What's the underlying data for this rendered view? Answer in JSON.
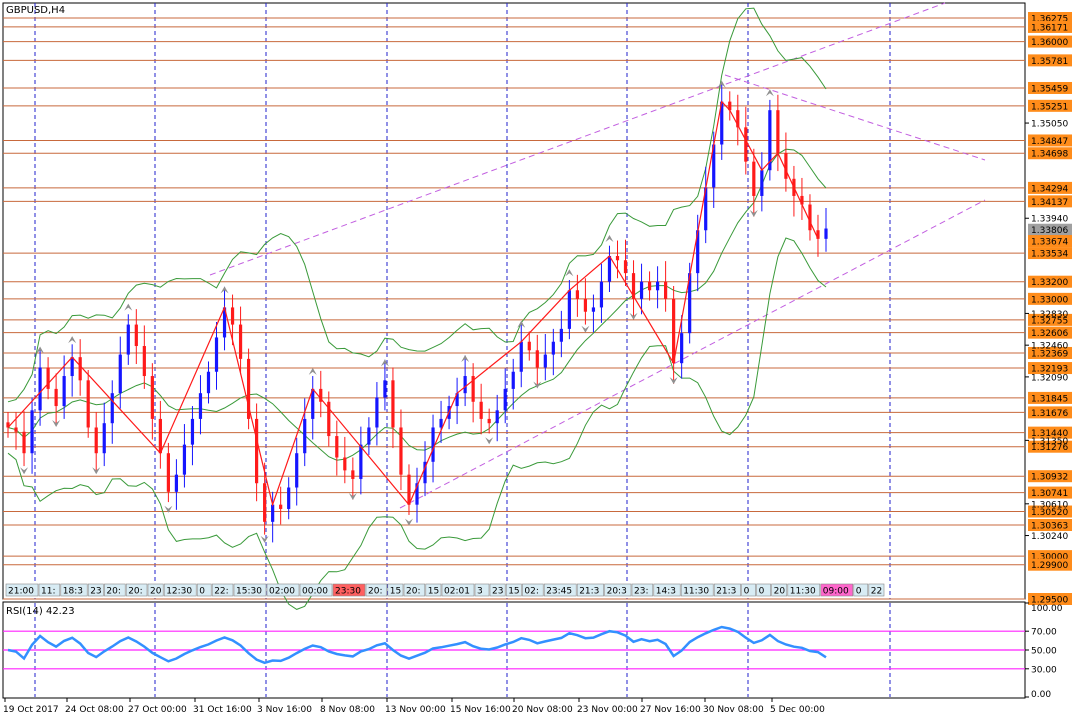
{
  "symbol_label": "GBPUSD,H4",
  "indicator_label": "RSI(14) 42.23",
  "colors": {
    "up": "#1515ff",
    "down": "#ff1a1a",
    "level_line": "#c8693c",
    "level_box_bg": "#ff8c1a",
    "current_box_bg": "#a0a0a0",
    "channel": "#c25fe0",
    "bollinger": "#3a9a3a",
    "grid": "#2222cc",
    "rsi_line": "#3390ff",
    "rsi_levels": "#ff22ff",
    "fractal": "#909090",
    "timebar_bg": "#d8ecf4"
  },
  "y_axis_ticks": [
    "1.35050",
    "1.33940",
    "1.32830",
    "1.32460",
    "1.32090",
    "1.31350",
    "1.30610",
    "1.30240"
  ],
  "levels": [
    "1.36275",
    "1.36171",
    "1.36000",
    "1.35781",
    "1.35459",
    "1.35251",
    "1.34847",
    "1.34698",
    "1.34294",
    "1.34137",
    "1.33534",
    "1.33200",
    "1.33000",
    "1.32755",
    "1.32606",
    "1.32369",
    "1.32193",
    "1.31845",
    "1.31676",
    "1.31440",
    "1.31276",
    "1.30932",
    "1.30741",
    "1.30520",
    "1.30363",
    "1.30000",
    "1.29900",
    "1.29500"
  ],
  "current_price": "1.33806",
  "current_price_2": "1.33674",
  "time_bar_labels": [
    "21:00",
    "11:",
    "18:3",
    "23",
    "20:",
    "20:",
    "20",
    "12:30",
    "0",
    "22:",
    "15:30",
    "02:00",
    "00:00",
    "23:30",
    "20:",
    "15",
    "20:",
    "15",
    "02:01",
    "3",
    "23",
    "15",
    "02:",
    "23:45",
    "21:3",
    "20:3",
    "23:",
    "14:3",
    "11:30",
    "21:3",
    "0",
    "0",
    "20",
    "11:30",
    "09:00",
    "0",
    "22",
    "18:",
    "1",
    "02:00",
    "00:",
    "22:0",
    "17:00"
  ],
  "x_axis_labels": [
    "19 Oct 2017",
    "24 Oct 08:00",
    "27 Oct 00:00",
    "31 Oct 16:00",
    "3 Nov 16:00",
    "8 Nov 08:00",
    "13 Nov 00:00",
    "15 Nov 16:00",
    "20 Nov 08:00",
    "23 Nov 00:00",
    "27 Nov 16:00",
    "30 Nov 08:00",
    "5 Dec 00:00"
  ],
  "rsi_ticks": [
    "100.00",
    "70.00",
    "50.00",
    "30.00",
    "0.00"
  ],
  "chart_data": {
    "type": "candlestick",
    "symbol": "GBPUSD",
    "timeframe": "H4",
    "ylim": [
      1.295,
      1.3645
    ],
    "levels": [
      1.36275,
      1.36171,
      1.36,
      1.35781,
      1.35459,
      1.35251,
      1.34847,
      1.34698,
      1.34294,
      1.34137,
      1.33534,
      1.332,
      1.33,
      1.32755,
      1.32606,
      1.32369,
      1.32193,
      1.31845,
      1.31676,
      1.3144,
      1.31276,
      1.30932,
      1.30741,
      1.3052,
      1.30363,
      1.3,
      1.299,
      1.295
    ],
    "closes": [
      1.315,
      1.3145,
      1.312,
      1.317,
      1.322,
      1.3195,
      1.3175,
      1.321,
      1.3232,
      1.3205,
      1.315,
      1.312,
      1.3155,
      1.319,
      1.3235,
      1.327,
      1.3245,
      1.321,
      1.316,
      1.312,
      1.3075,
      1.3095,
      1.313,
      1.316,
      1.319,
      1.3215,
      1.3255,
      1.329,
      1.327,
      1.323,
      1.316,
      1.3085,
      1.304,
      1.306,
      1.3055,
      1.308,
      1.312,
      1.316,
      1.3195,
      1.318,
      1.314,
      1.3115,
      1.31,
      1.309,
      1.313,
      1.315,
      1.3185,
      1.3205,
      1.315,
      1.3095,
      1.306,
      1.3085,
      1.311,
      1.315,
      1.316,
      1.3175,
      1.319,
      1.321,
      1.318,
      1.316,
      1.3155,
      1.317,
      1.3195,
      1.3215,
      1.325,
      1.324,
      1.322,
      1.3235,
      1.325,
      1.3265,
      1.331,
      1.33,
      1.3285,
      1.329,
      1.332,
      1.335,
      1.3345,
      1.333,
      1.33,
      1.332,
      1.331,
      1.332,
      1.33,
      1.3225,
      1.326,
      1.333,
      1.338,
      1.343,
      1.348,
      1.353,
      1.352,
      1.35,
      1.346,
      1.342,
      1.345,
      1.352,
      1.347,
      1.344,
      1.342,
      1.341,
      1.338,
      1.337,
      1.3382
    ],
    "rsi": {
      "period": 14,
      "current": 42.23,
      "levels": [
        70,
        50,
        30
      ],
      "ylim": [
        0,
        100
      ]
    }
  }
}
